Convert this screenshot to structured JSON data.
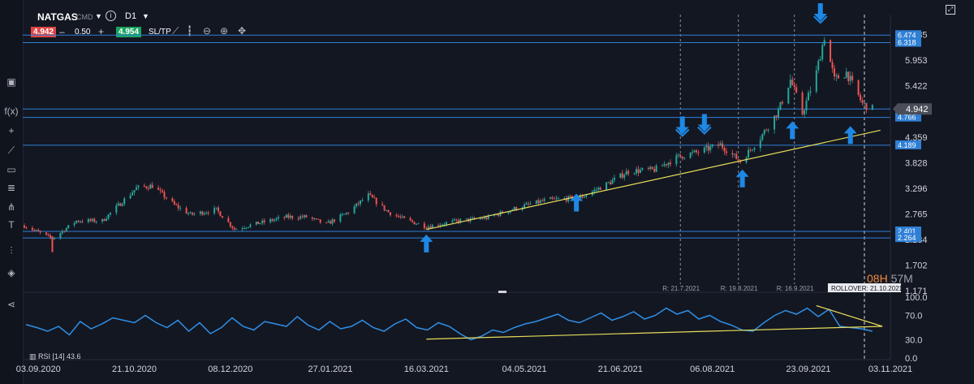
{
  "header": {
    "symbol": "NATGAS",
    "market_type": "CMD",
    "timeframe": "D1",
    "bid": "4.942",
    "lot": "0.50",
    "ask": "4.954",
    "sltp_label": "SL/TP"
  },
  "toolbar_icons": [
    "cursor-icon",
    "fx-icon",
    "crosshair-icon",
    "trendline-icon",
    "rectangle-icon",
    "fib-icon",
    "pitchfork-icon",
    "text-icon",
    "indicators-icon",
    "layers-icon",
    "share-icon"
  ],
  "colors": {
    "background": "#131722",
    "up": "#26a69a",
    "down": "#ef5350",
    "level_line": "#2f7fd6",
    "trend_line": "#e7dc5a",
    "rsi_line": "#2f8fe6",
    "arrow": "#1e88e5"
  },
  "countdown": {
    "hours": "08H",
    "minutes": "57M"
  },
  "rsi_label": "RSI [14] 43.6",
  "chart_data": {
    "type": "candlestick",
    "price_axis_ticks": [
      6.485,
      5.953,
      5.422,
      4.359,
      3.828,
      3.296,
      2.765,
      2.234,
      1.702,
      1.171
    ],
    "current_price_label": "4.942",
    "current_price": 4.942,
    "ylim": [
      1.171,
      6.9
    ],
    "date_ticks": [
      "03.09.2020",
      "21.10.2020",
      "08.12.2020",
      "27.01.2021",
      "16.03.2021",
      "04.05.2021",
      "21.06.2021",
      "06.08.2021",
      "23.09.2021",
      "03.11.2021"
    ],
    "x_range": [
      "2020-08-27",
      "2021-11-03"
    ],
    "horizontal_levels": [
      {
        "value": 6.474,
        "label": "6.474"
      },
      {
        "value": 6.318,
        "label": "6.318"
      },
      {
        "value": 4.766,
        "label": "4.766"
      },
      {
        "value": 4.189,
        "label": "4.189"
      },
      {
        "value": 2.401,
        "label": "2.401"
      },
      {
        "value": 2.264,
        "label": "2.264"
      },
      {
        "value": 4.942,
        "label": ""
      }
    ],
    "trendline": {
      "from": [
        "2021-03-16",
        2.44
      ],
      "to": [
        "2021-10-29",
        4.5
      ]
    },
    "rollover_markers": [
      {
        "date": "2021-07-21",
        "label": "R: 21.7.2021"
      },
      {
        "date": "2021-08-19",
        "label": "R: 19.8.2021"
      },
      {
        "date": "2021-09-16",
        "label": "R: 16.9.2021"
      }
    ],
    "rollover_next": {
      "date": "2021-10-21",
      "label": "ROLLOVER: 21.10.2021"
    },
    "arrows": [
      {
        "dir": "up",
        "date": "2021-03-16",
        "price": 2.15
      },
      {
        "dir": "up",
        "date": "2021-05-30",
        "price": 3.0
      },
      {
        "dir": "down",
        "date": "2021-07-22",
        "price": 4.6
      },
      {
        "dir": "down",
        "date": "2021-08-02",
        "price": 4.65
      },
      {
        "dir": "up",
        "date": "2021-08-21",
        "price": 3.5
      },
      {
        "dir": "up",
        "date": "2021-09-15",
        "price": 4.5
      },
      {
        "dir": "down",
        "date": "2021-09-29",
        "price": 6.95
      },
      {
        "dir": "up",
        "date": "2021-10-14",
        "price": 4.4
      }
    ],
    "price_path": [
      [
        "2020-08-27",
        2.52
      ],
      [
        "2020-09-10",
        2.25
      ],
      [
        "2020-09-22",
        2.62
      ],
      [
        "2020-10-05",
        2.62
      ],
      [
        "2020-10-12",
        2.9
      ],
      [
        "2020-10-22",
        3.3
      ],
      [
        "2020-10-30",
        3.35
      ],
      [
        "2020-11-10",
        2.95
      ],
      [
        "2020-11-18",
        2.75
      ],
      [
        "2020-12-01",
        2.85
      ],
      [
        "2020-12-10",
        2.45
      ],
      [
        "2020-12-20",
        2.55
      ],
      [
        "2021-01-05",
        2.7
      ],
      [
        "2021-01-15",
        2.7
      ],
      [
        "2021-01-25",
        2.55
      ],
      [
        "2021-02-05",
        2.8
      ],
      [
        "2021-02-15",
        3.15
      ],
      [
        "2021-02-25",
        2.8
      ],
      [
        "2021-03-05",
        2.65
      ],
      [
        "2021-03-16",
        2.5
      ],
      [
        "2021-04-01",
        2.62
      ],
      [
        "2021-04-15",
        2.68
      ],
      [
        "2021-05-01",
        2.9
      ],
      [
        "2021-05-15",
        3.05
      ],
      [
        "2021-06-01",
        3.1
      ],
      [
        "2021-06-15",
        3.4
      ],
      [
        "2021-06-25",
        3.65
      ],
      [
        "2021-07-08",
        3.68
      ],
      [
        "2021-07-20",
        3.95
      ],
      [
        "2021-07-30",
        4.05
      ],
      [
        "2021-08-10",
        4.2
      ],
      [
        "2021-08-20",
        3.85
      ],
      [
        "2021-08-30",
        4.35
      ],
      [
        "2021-09-08",
        4.9
      ],
      [
        "2021-09-14",
        5.55
      ],
      [
        "2021-09-20",
        4.85
      ],
      [
        "2021-09-27",
        5.7
      ],
      [
        "2021-10-01",
        6.45
      ],
      [
        "2021-10-06",
        5.55
      ],
      [
        "2021-10-12",
        5.7
      ],
      [
        "2021-10-20",
        5.05
      ],
      [
        "2021-10-25",
        4.942
      ]
    ],
    "rsi": {
      "ylim": [
        0,
        100
      ],
      "ticks": [
        100.0,
        70.0,
        30.0,
        0.0
      ],
      "values": [
        55,
        50,
        44,
        52,
        38,
        60,
        48,
        56,
        66,
        62,
        58,
        70,
        58,
        50,
        62,
        44,
        58,
        40,
        50,
        66,
        52,
        46,
        60,
        56,
        52,
        68,
        54,
        46,
        60,
        48,
        52,
        62,
        50,
        44,
        56,
        64,
        50,
        46,
        58,
        52,
        40,
        30,
        36,
        46,
        42,
        50,
        56,
        60,
        66,
        72,
        62,
        58,
        66,
        74,
        62,
        68,
        76,
        64,
        70,
        82,
        72,
        78,
        64,
        70,
        60,
        54,
        46,
        44,
        58,
        70,
        78,
        72,
        82,
        68,
        80,
        52,
        50,
        48,
        44
      ],
      "trendlines": [
        {
          "from": [
            "2021-03-16",
            31
          ],
          "to": [
            "2021-10-30",
            52
          ]
        },
        {
          "from": [
            "2021-09-27",
            86
          ],
          "to": [
            "2021-10-30",
            52
          ]
        }
      ]
    }
  }
}
